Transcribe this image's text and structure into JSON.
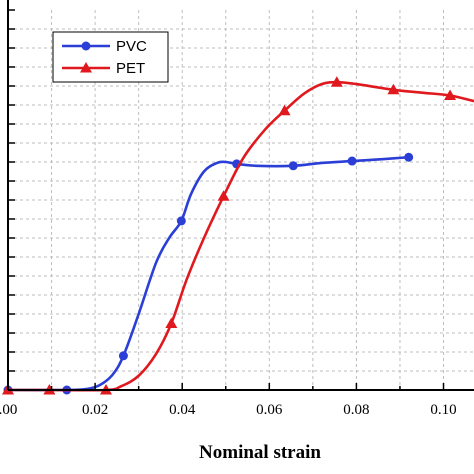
{
  "chart_data": {
    "type": "line",
    "title": "",
    "xlabel": "Nominal strain",
    "ylabel": "",
    "xlim": [
      0.0,
      0.107
    ],
    "ylim": [
      0,
      20
    ],
    "grid": true,
    "legend_position": "top-left",
    "x_ticks": [
      0.0,
      0.02,
      0.04,
      0.06,
      0.08,
      0.1
    ],
    "x_tick_labels": [
      ".00",
      "0.02",
      "0.04",
      "0.06",
      "0.08",
      "0.10"
    ],
    "y_tick_count": 20,
    "series": [
      {
        "name": "PVC",
        "color": "#2b3fd6",
        "marker": "circle",
        "markers": [
          [
            0.0,
            0.0
          ],
          [
            0.0135,
            0.0
          ],
          [
            0.0265,
            1.8
          ],
          [
            0.0398,
            8.9
          ],
          [
            0.0525,
            11.9
          ],
          [
            0.0655,
            11.8
          ],
          [
            0.079,
            12.05
          ],
          [
            0.092,
            12.25
          ]
        ],
        "x": [
          0.0,
          0.0135,
          0.018,
          0.021,
          0.024,
          0.0265,
          0.03,
          0.034,
          0.037,
          0.0398,
          0.042,
          0.045,
          0.048,
          0.05,
          0.0525,
          0.057,
          0.0655,
          0.072,
          0.079,
          0.086,
          0.092
        ],
        "y": [
          0.0,
          0.0,
          0.05,
          0.25,
          0.8,
          1.8,
          4.0,
          6.7,
          8.0,
          8.9,
          10.3,
          11.5,
          11.95,
          12.0,
          11.9,
          11.8,
          11.8,
          11.95,
          12.05,
          12.15,
          12.25
        ]
      },
      {
        "name": "PET",
        "color": "#e0191f",
        "marker": "triangle",
        "markers": [
          [
            0.0,
            0.0
          ],
          [
            0.0095,
            0.0
          ],
          [
            0.0225,
            0.0
          ],
          [
            0.0375,
            3.5
          ],
          [
            0.0495,
            10.2
          ],
          [
            0.0635,
            14.7
          ],
          [
            0.0755,
            16.2
          ],
          [
            0.0885,
            15.8
          ],
          [
            0.1015,
            15.5
          ]
        ],
        "x": [
          0.0,
          0.0095,
          0.0225,
          0.026,
          0.03,
          0.034,
          0.0375,
          0.041,
          0.045,
          0.0495,
          0.054,
          0.059,
          0.0635,
          0.068,
          0.072,
          0.0755,
          0.08,
          0.0885,
          0.095,
          0.1015,
          0.107
        ],
        "y": [
          0.0,
          0.0,
          0.0,
          0.2,
          0.75,
          1.9,
          3.5,
          5.8,
          8.0,
          10.2,
          12.2,
          13.7,
          14.7,
          15.6,
          16.1,
          16.2,
          16.1,
          15.8,
          15.65,
          15.5,
          15.2
        ]
      }
    ]
  }
}
